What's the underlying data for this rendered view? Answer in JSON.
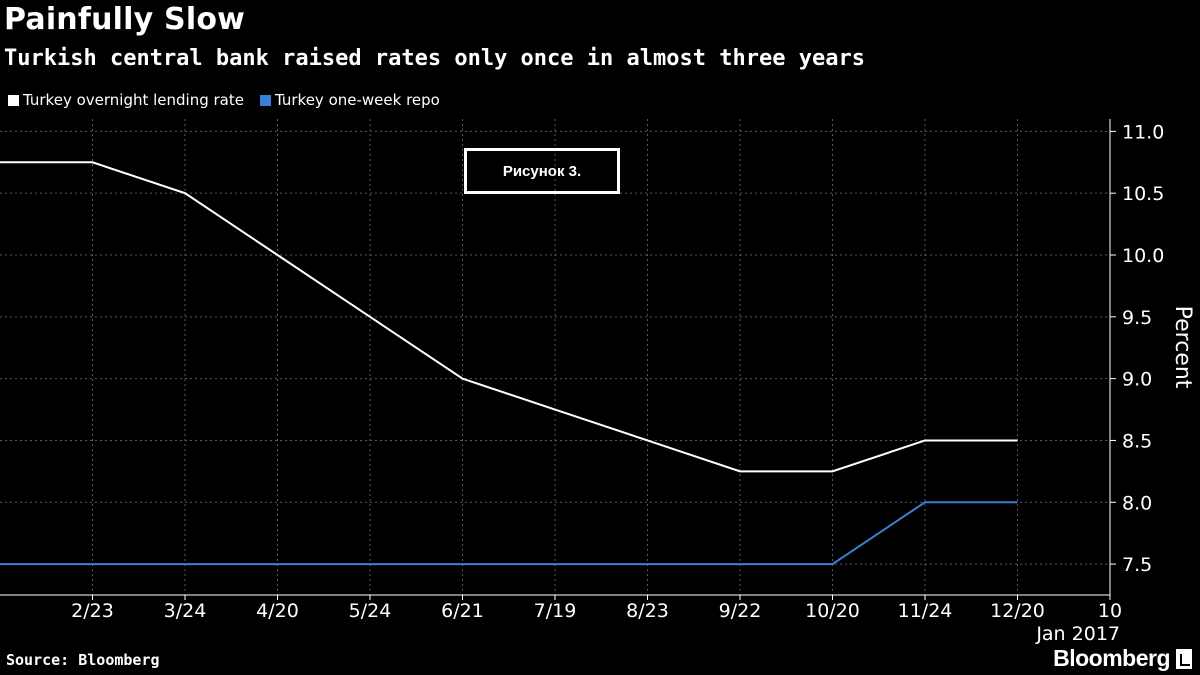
{
  "chart_data": {
    "type": "line",
    "title": "Painfully Slow",
    "subtitle": "Turkish central bank raised rates only once in almost three years",
    "ylabel": "Percent",
    "xlabel": "",
    "ylim": [
      7.25,
      11.1
    ],
    "yticks": [
      "11.0",
      "10.5",
      "10.0",
      "9.5",
      "9.0",
      "8.5",
      "8.0",
      "7.5"
    ],
    "ytick_values": [
      11.0,
      10.5,
      10.0,
      9.5,
      9.0,
      8.5,
      8.0,
      7.5
    ],
    "x_index_range": [
      0,
      12
    ],
    "x": [
      "2/23",
      "3/24",
      "4/20",
      "5/24",
      "6/21",
      "7/19",
      "8/23",
      "9/22",
      "10/20",
      "11/24",
      "12/20",
      "10"
    ],
    "x_index": [
      1,
      2,
      3,
      4,
      5,
      6,
      7,
      8,
      9,
      10,
      11,
      12
    ],
    "x_secondary_label": "Jan 2017",
    "grid": true,
    "legend_position": "top-left",
    "series": [
      {
        "name": "Turkey overnight lending rate",
        "color": "#ffffff",
        "points": [
          [
            0,
            10.75
          ],
          [
            1,
            10.75
          ],
          [
            2,
            10.5
          ],
          [
            3,
            10.0
          ],
          [
            4,
            9.5
          ],
          [
            5,
            9.0
          ],
          [
            6,
            8.75
          ],
          [
            7,
            8.5
          ],
          [
            8,
            8.25
          ],
          [
            9,
            8.25
          ],
          [
            10,
            8.5
          ],
          [
            11,
            8.5
          ]
        ]
      },
      {
        "name": "Turkey one-week repo",
        "color": "#3a7fd6",
        "points": [
          [
            0,
            7.5
          ],
          [
            1,
            7.5
          ],
          [
            2,
            7.5
          ],
          [
            3,
            7.5
          ],
          [
            4,
            7.5
          ],
          [
            5,
            7.5
          ],
          [
            6,
            7.5
          ],
          [
            7,
            7.5
          ],
          [
            8,
            7.5
          ],
          [
            9,
            7.5
          ],
          [
            10,
            8.0
          ],
          [
            11,
            8.0
          ]
        ]
      }
    ],
    "annotation": "Рисунок 3."
  },
  "source": "Source: Bloomberg",
  "brand": "Bloomberg"
}
